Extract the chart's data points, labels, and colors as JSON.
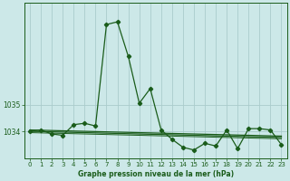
{
  "title": "Graphe pression niveau de la mer (hPa)",
  "background_color": "#cce8e8",
  "grid_color": "#aacccc",
  "line_color": "#1a5c1a",
  "xlim": [
    -0.5,
    23.5
  ],
  "ylim": [
    1033.0,
    1038.8
  ],
  "yticks": [
    1034,
    1035
  ],
  "ytick_labels": [
    "1034",
    "1035"
  ],
  "xticks": [
    0,
    1,
    2,
    3,
    4,
    5,
    6,
    7,
    8,
    9,
    10,
    11,
    12,
    13,
    14,
    15,
    16,
    17,
    18,
    19,
    20,
    21,
    22,
    23
  ],
  "main_x": [
    0,
    1,
    2,
    3,
    4,
    5,
    6,
    7,
    8,
    9,
    10,
    11,
    12,
    13,
    14,
    15,
    16,
    17,
    18,
    19,
    20,
    21,
    22,
    23
  ],
  "main_y": [
    1034.0,
    1034.05,
    1033.9,
    1033.85,
    1034.25,
    1034.3,
    1034.2,
    1038.0,
    1038.1,
    1036.8,
    1035.05,
    1035.6,
    1034.05,
    1033.7,
    1033.4,
    1033.3,
    1033.55,
    1033.45,
    1034.05,
    1033.35,
    1034.1,
    1034.1,
    1034.05,
    1033.5
  ],
  "trend1_x": [
    0,
    1,
    2,
    3,
    4,
    5,
    6,
    7,
    8,
    9,
    10,
    11,
    12,
    13,
    14,
    15,
    16,
    17,
    18,
    19,
    20,
    21,
    22,
    23
  ],
  "trend1_y": [
    1034.05,
    1034.04,
    1034.03,
    1034.02,
    1034.01,
    1034.0,
    1033.99,
    1033.98,
    1033.97,
    1033.96,
    1033.95,
    1033.94,
    1033.93,
    1033.92,
    1033.91,
    1033.9,
    1033.89,
    1033.88,
    1033.87,
    1033.86,
    1033.85,
    1033.84,
    1033.83,
    1033.82
  ],
  "trend2_x": [
    0,
    1,
    2,
    3,
    4,
    5,
    6,
    7,
    8,
    9,
    10,
    11,
    12,
    13,
    14,
    15,
    16,
    17,
    18,
    19,
    20,
    21,
    22,
    23
  ],
  "trend2_y": [
    1034.0,
    1033.99,
    1033.98,
    1033.97,
    1033.96,
    1033.95,
    1033.94,
    1033.93,
    1033.92,
    1033.91,
    1033.9,
    1033.89,
    1033.88,
    1033.87,
    1033.86,
    1033.85,
    1033.84,
    1033.83,
    1033.82,
    1033.81,
    1033.8,
    1033.79,
    1033.78,
    1033.77
  ],
  "trend3_x": [
    0,
    1,
    2,
    3,
    4,
    5,
    6,
    7,
    8,
    9,
    10,
    11,
    12,
    13,
    14,
    15,
    16,
    17,
    18,
    19,
    20,
    21,
    22,
    23
  ],
  "trend3_y": [
    1033.95,
    1033.94,
    1033.93,
    1033.92,
    1033.91,
    1033.9,
    1033.89,
    1033.88,
    1033.87,
    1033.86,
    1033.85,
    1033.84,
    1033.83,
    1033.82,
    1033.81,
    1033.8,
    1033.79,
    1033.78,
    1033.77,
    1033.76,
    1033.75,
    1033.74,
    1033.73,
    1033.72
  ]
}
